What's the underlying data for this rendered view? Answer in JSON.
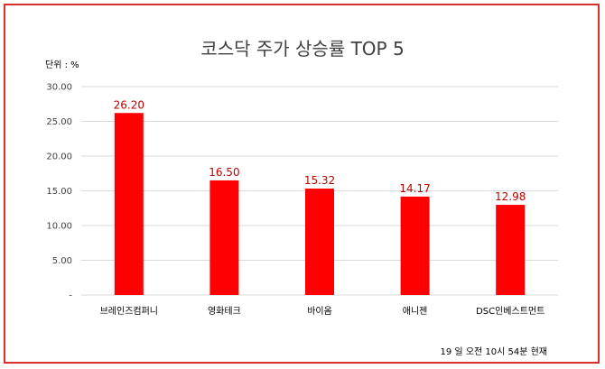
{
  "chart_data": {
    "type": "bar",
    "title": "코스닥 주가 상승률 TOP 5",
    "unit_label": "단위 : %",
    "categories": [
      "브레인즈컴퍼니",
      "영화테크",
      "바이옴",
      "애니젠",
      "DSC인베스트먼트"
    ],
    "values": [
      26.2,
      16.5,
      15.32,
      14.17,
      12.98
    ],
    "data_labels": [
      "26.20",
      "16.50",
      "15.32",
      "14.17",
      "12.98"
    ],
    "ylim": [
      0,
      30
    ],
    "yticks": [
      0,
      5,
      10,
      15,
      20,
      25,
      30
    ],
    "ytick_labels": [
      "-",
      "5.00",
      "10.00",
      "15.00",
      "20.00",
      "25.00",
      "30.00"
    ],
    "xlabel": "",
    "ylabel": "",
    "grid": true,
    "bar_color": "#ff0000",
    "label_color": "#c00000"
  },
  "footnote": "19 일  오전 10시 54분 현재",
  "colors": {
    "frame": "#d9302b"
  }
}
